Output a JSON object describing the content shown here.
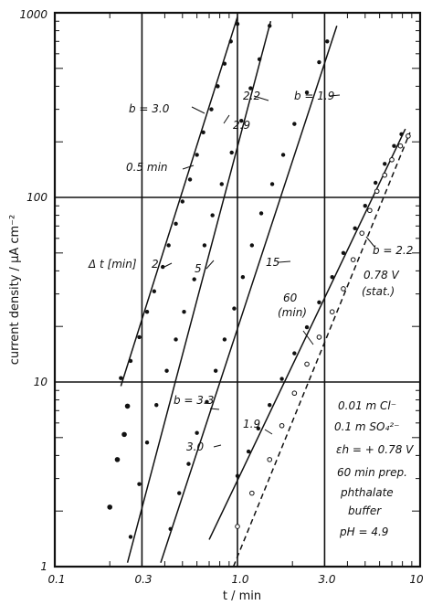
{
  "chart_data": {
    "type": "scatter",
    "xscale": "log",
    "yscale": "log",
    "xlim": [
      0.1,
      10
    ],
    "ylim": [
      1,
      1000
    ],
    "xlabel": "t / min",
    "ylabel": "current density / μA cm⁻²",
    "grid": true,
    "xticks": [
      "0.1",
      "0.3",
      "1.0",
      "3.0",
      "10"
    ],
    "yticks": [
      "1",
      "10",
      "100",
      "1000"
    ],
    "series": [
      {
        "style": "solid",
        "points": [
          [
            0.23,
            10.5
          ],
          [
            0.26,
            13
          ],
          [
            0.29,
            17.5
          ],
          [
            0.32,
            24
          ],
          [
            0.35,
            31
          ],
          [
            0.39,
            42
          ],
          [
            0.42,
            55
          ],
          [
            0.46,
            72
          ],
          [
            0.5,
            95
          ],
          [
            0.55,
            125
          ],
          [
            0.6,
            170
          ],
          [
            0.65,
            225
          ],
          [
            0.72,
            300
          ],
          [
            0.78,
            400
          ],
          [
            0.85,
            530
          ],
          [
            0.92,
            700
          ],
          [
            1.0,
            870
          ]
        ],
        "line": [
          [
            0.23,
            9.5
          ],
          [
            1.0,
            950
          ]
        ]
      },
      {
        "style": "solid",
        "points": [
          [
            0.26,
            1.45
          ],
          [
            0.29,
            2.8
          ],
          [
            0.32,
            4.7
          ],
          [
            0.36,
            7.5
          ],
          [
            0.41,
            11.5
          ],
          [
            0.46,
            17
          ],
          [
            0.51,
            24
          ],
          [
            0.58,
            36
          ],
          [
            0.66,
            55
          ],
          [
            0.73,
            80
          ],
          [
            0.82,
            118
          ],
          [
            0.93,
            175
          ],
          [
            1.05,
            260
          ],
          [
            1.18,
            390
          ],
          [
            1.32,
            560
          ],
          [
            1.5,
            850
          ]
        ],
        "line": [
          [
            0.25,
            1.05
          ],
          [
            1.52,
            900
          ]
        ]
      },
      {
        "style": "solid",
        "points": [
          [
            0.43,
            1.6
          ],
          [
            0.48,
            2.5
          ],
          [
            0.54,
            3.6
          ],
          [
            0.6,
            5.3
          ],
          [
            0.68,
            7.8
          ],
          [
            0.76,
            11.5
          ],
          [
            0.85,
            17
          ],
          [
            0.96,
            25
          ],
          [
            1.07,
            37
          ],
          [
            1.2,
            55
          ],
          [
            1.35,
            82
          ],
          [
            1.55,
            118
          ],
          [
            1.78,
            170
          ],
          [
            2.05,
            250
          ],
          [
            2.4,
            370
          ],
          [
            2.8,
            540
          ],
          [
            3.1,
            700
          ]
        ],
        "line": [
          [
            0.38,
            1.05
          ],
          [
            3.5,
            850
          ]
        ]
      },
      {
        "style": "solid",
        "points": [
          [
            1.0,
            3.1
          ],
          [
            1.15,
            4.2
          ],
          [
            1.3,
            5.6
          ],
          [
            1.5,
            7.5
          ],
          [
            1.75,
            10.4
          ],
          [
            2.05,
            14.3
          ],
          [
            2.4,
            19.8
          ],
          [
            2.8,
            27
          ],
          [
            3.3,
            37
          ],
          [
            3.8,
            50
          ],
          [
            4.4,
            68
          ],
          [
            5.0,
            90
          ],
          [
            5.7,
            120
          ],
          [
            6.4,
            152
          ],
          [
            7.2,
            190
          ],
          [
            7.9,
            220
          ]
        ],
        "line": [
          [
            0.7,
            1.4
          ],
          [
            8.3,
            235
          ]
        ]
      },
      {
        "style": "dashed",
        "points": [
          [
            1.0,
            1.65
          ],
          [
            1.2,
            2.5
          ],
          [
            1.5,
            3.8
          ],
          [
            1.75,
            5.8
          ],
          [
            2.05,
            8.7
          ],
          [
            2.4,
            12.5
          ],
          [
            2.8,
            17.5
          ],
          [
            3.3,
            24
          ],
          [
            3.8,
            32
          ],
          [
            4.3,
            46
          ],
          [
            4.8,
            64
          ],
          [
            5.3,
            85
          ],
          [
            5.8,
            108
          ],
          [
            6.4,
            132
          ],
          [
            7.0,
            160
          ],
          [
            7.8,
            190
          ],
          [
            8.6,
            215
          ]
        ],
        "line": [
          [
            0.95,
            1.0
          ],
          [
            8.8,
            225
          ]
        ]
      },
      {
        "style": "scatter",
        "points": [
          [
            0.2,
            2.1
          ],
          [
            0.22,
            3.8
          ],
          [
            0.24,
            5.2
          ],
          [
            0.25,
            7.4
          ]
        ]
      }
    ],
    "annotations": [
      {
        "text": "b = 3.0"
      },
      {
        "text": "2.2"
      },
      {
        "text": "b = 1.9"
      },
      {
        "text": "2.9"
      },
      {
        "text": "0.5 min"
      },
      {
        "text": "Δ t [min]"
      },
      {
        "text": "2"
      },
      {
        "text": "5"
      },
      {
        "text": "15"
      },
      {
        "text": "60"
      },
      {
        "text": "(min)"
      },
      {
        "text": "b = 2.2"
      },
      {
        "text": "0.78 V"
      },
      {
        "text": "(stat.)"
      },
      {
        "text": "b = 3.3"
      },
      {
        "text": "3.0"
      },
      {
        "text": "1.9"
      },
      {
        "text": "0.01 m Cl⁻"
      },
      {
        "text": "0.1 m SO₄²⁻"
      },
      {
        "text": "εh = + 0.78 V"
      },
      {
        "text": "60 min prep."
      },
      {
        "text": "phthalate"
      },
      {
        "text": "buffer"
      },
      {
        "text": "pH = 4.9"
      }
    ]
  }
}
